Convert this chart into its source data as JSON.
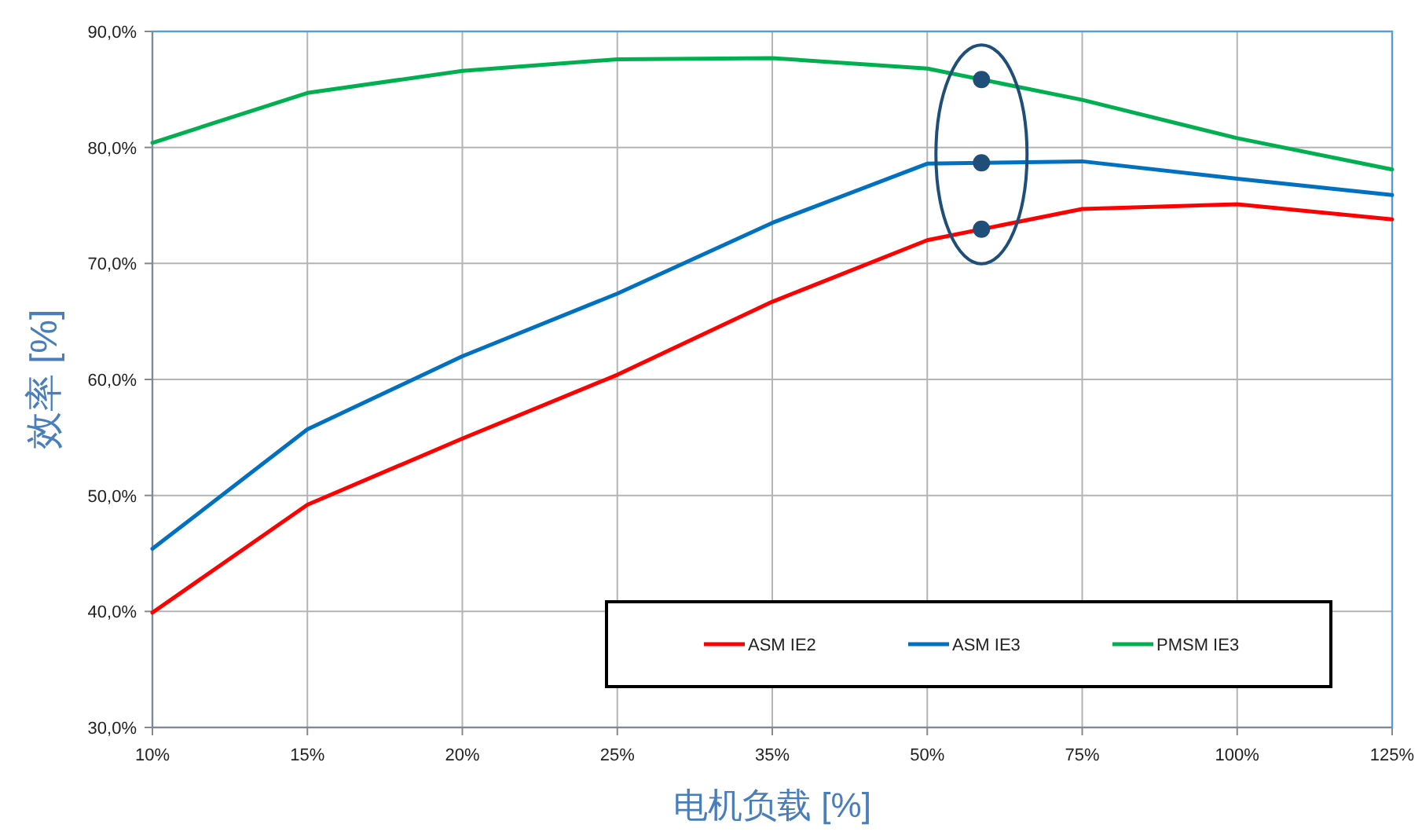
{
  "chart_data": {
    "type": "line",
    "xlabel": "电机负载 [%]",
    "ylabel": "效率 [%]",
    "categories": [
      "10%",
      "15%",
      "20%",
      "25%",
      "35%",
      "50%",
      "75%",
      "100%",
      "125%"
    ],
    "ylim": [
      30,
      90
    ],
    "yticks": [
      {
        "value": 30,
        "label": "30,0%"
      },
      {
        "value": 40,
        "label": "40,0%"
      },
      {
        "value": 50,
        "label": "50,0%"
      },
      {
        "value": 60,
        "label": "60,0%"
      },
      {
        "value": 70,
        "label": "70,0%"
      },
      {
        "value": 80,
        "label": "80,0%"
      },
      {
        "value": 90,
        "label": "90,0%"
      }
    ],
    "grid": true,
    "legend": "bottom right",
    "series": [
      {
        "name": "ASM IE2",
        "color": "#ff0000",
        "values": [
          39.9,
          49.2,
          54.9,
          60.4,
          66.7,
          72.0,
          74.7,
          75.1,
          73.8
        ]
      },
      {
        "name": "ASM IE3",
        "color": "#0070c0",
        "values": [
          45.4,
          55.7,
          62.0,
          67.4,
          73.5,
          78.6,
          78.8,
          77.3,
          75.9
        ]
      },
      {
        "name": "PMSM IE3",
        "color": "#00b050",
        "values": [
          80.4,
          84.7,
          86.6,
          87.6,
          87.7,
          86.8,
          84.1,
          80.8,
          78.1
        ]
      }
    ]
  }
}
